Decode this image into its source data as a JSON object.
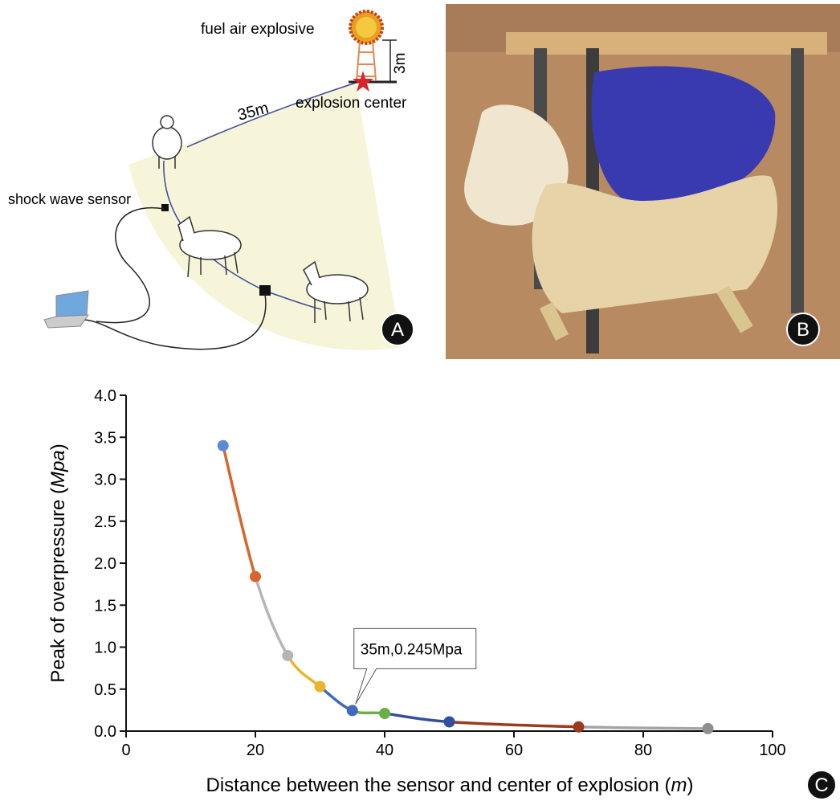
{
  "panels": {
    "a": {
      "letter": "A",
      "explosive": "fuel air explosive",
      "height": "3m",
      "distance": "35m",
      "center": "explosion center",
      "sensor": "shock wave sensor"
    },
    "b": {
      "letter": "B"
    },
    "c": {
      "letter": "C"
    }
  },
  "chart_data": {
    "type": "line",
    "x_label": [
      "Distance between the sensor and center of explosion  (",
      "m",
      ")"
    ],
    "y_label": [
      "Peak of overpressure (",
      "Mpa",
      ")"
    ],
    "x": [
      15,
      20,
      25,
      30,
      35,
      40,
      50,
      70,
      90
    ],
    "values": [
      3.4,
      1.84,
      0.9,
      0.53,
      0.245,
      0.21,
      0.11,
      0.05,
      0.03
    ],
    "colors": [
      "#5b8bd6",
      "#d8652c",
      "#b5b5b5",
      "#e9b52c",
      "#4169bd",
      "#6aae45",
      "#2f4f9f",
      "#9a3a1f",
      "#8f8f8f"
    ],
    "segment_colors": [
      "#d8652c",
      "#b5b5b5",
      "#e9b52c",
      "#4169bd",
      "#6aae45",
      "#2f4f9f",
      "#9a3a1f",
      "#a5a5a5"
    ],
    "annotation": "35m,0.245Mpa",
    "xlim": [
      0,
      100
    ],
    "xticks": [
      0,
      20,
      40,
      60,
      80,
      100
    ],
    "ylim": [
      0,
      4
    ],
    "yticks": [
      {
        "value": 0,
        "label": "0.0"
      },
      {
        "value": 0.5,
        "label": "0.5"
      },
      {
        "value": 1,
        "label": "1.0"
      },
      {
        "value": 1.5,
        "label": "1.5"
      },
      {
        "value": 2,
        "label": "2.0"
      },
      {
        "value": 2.5,
        "label": "2.5"
      },
      {
        "value": 3,
        "label": "3.0"
      },
      {
        "value": 3.5,
        "label": "3.5"
      },
      {
        "value": 4,
        "label": "4.0"
      }
    ]
  }
}
